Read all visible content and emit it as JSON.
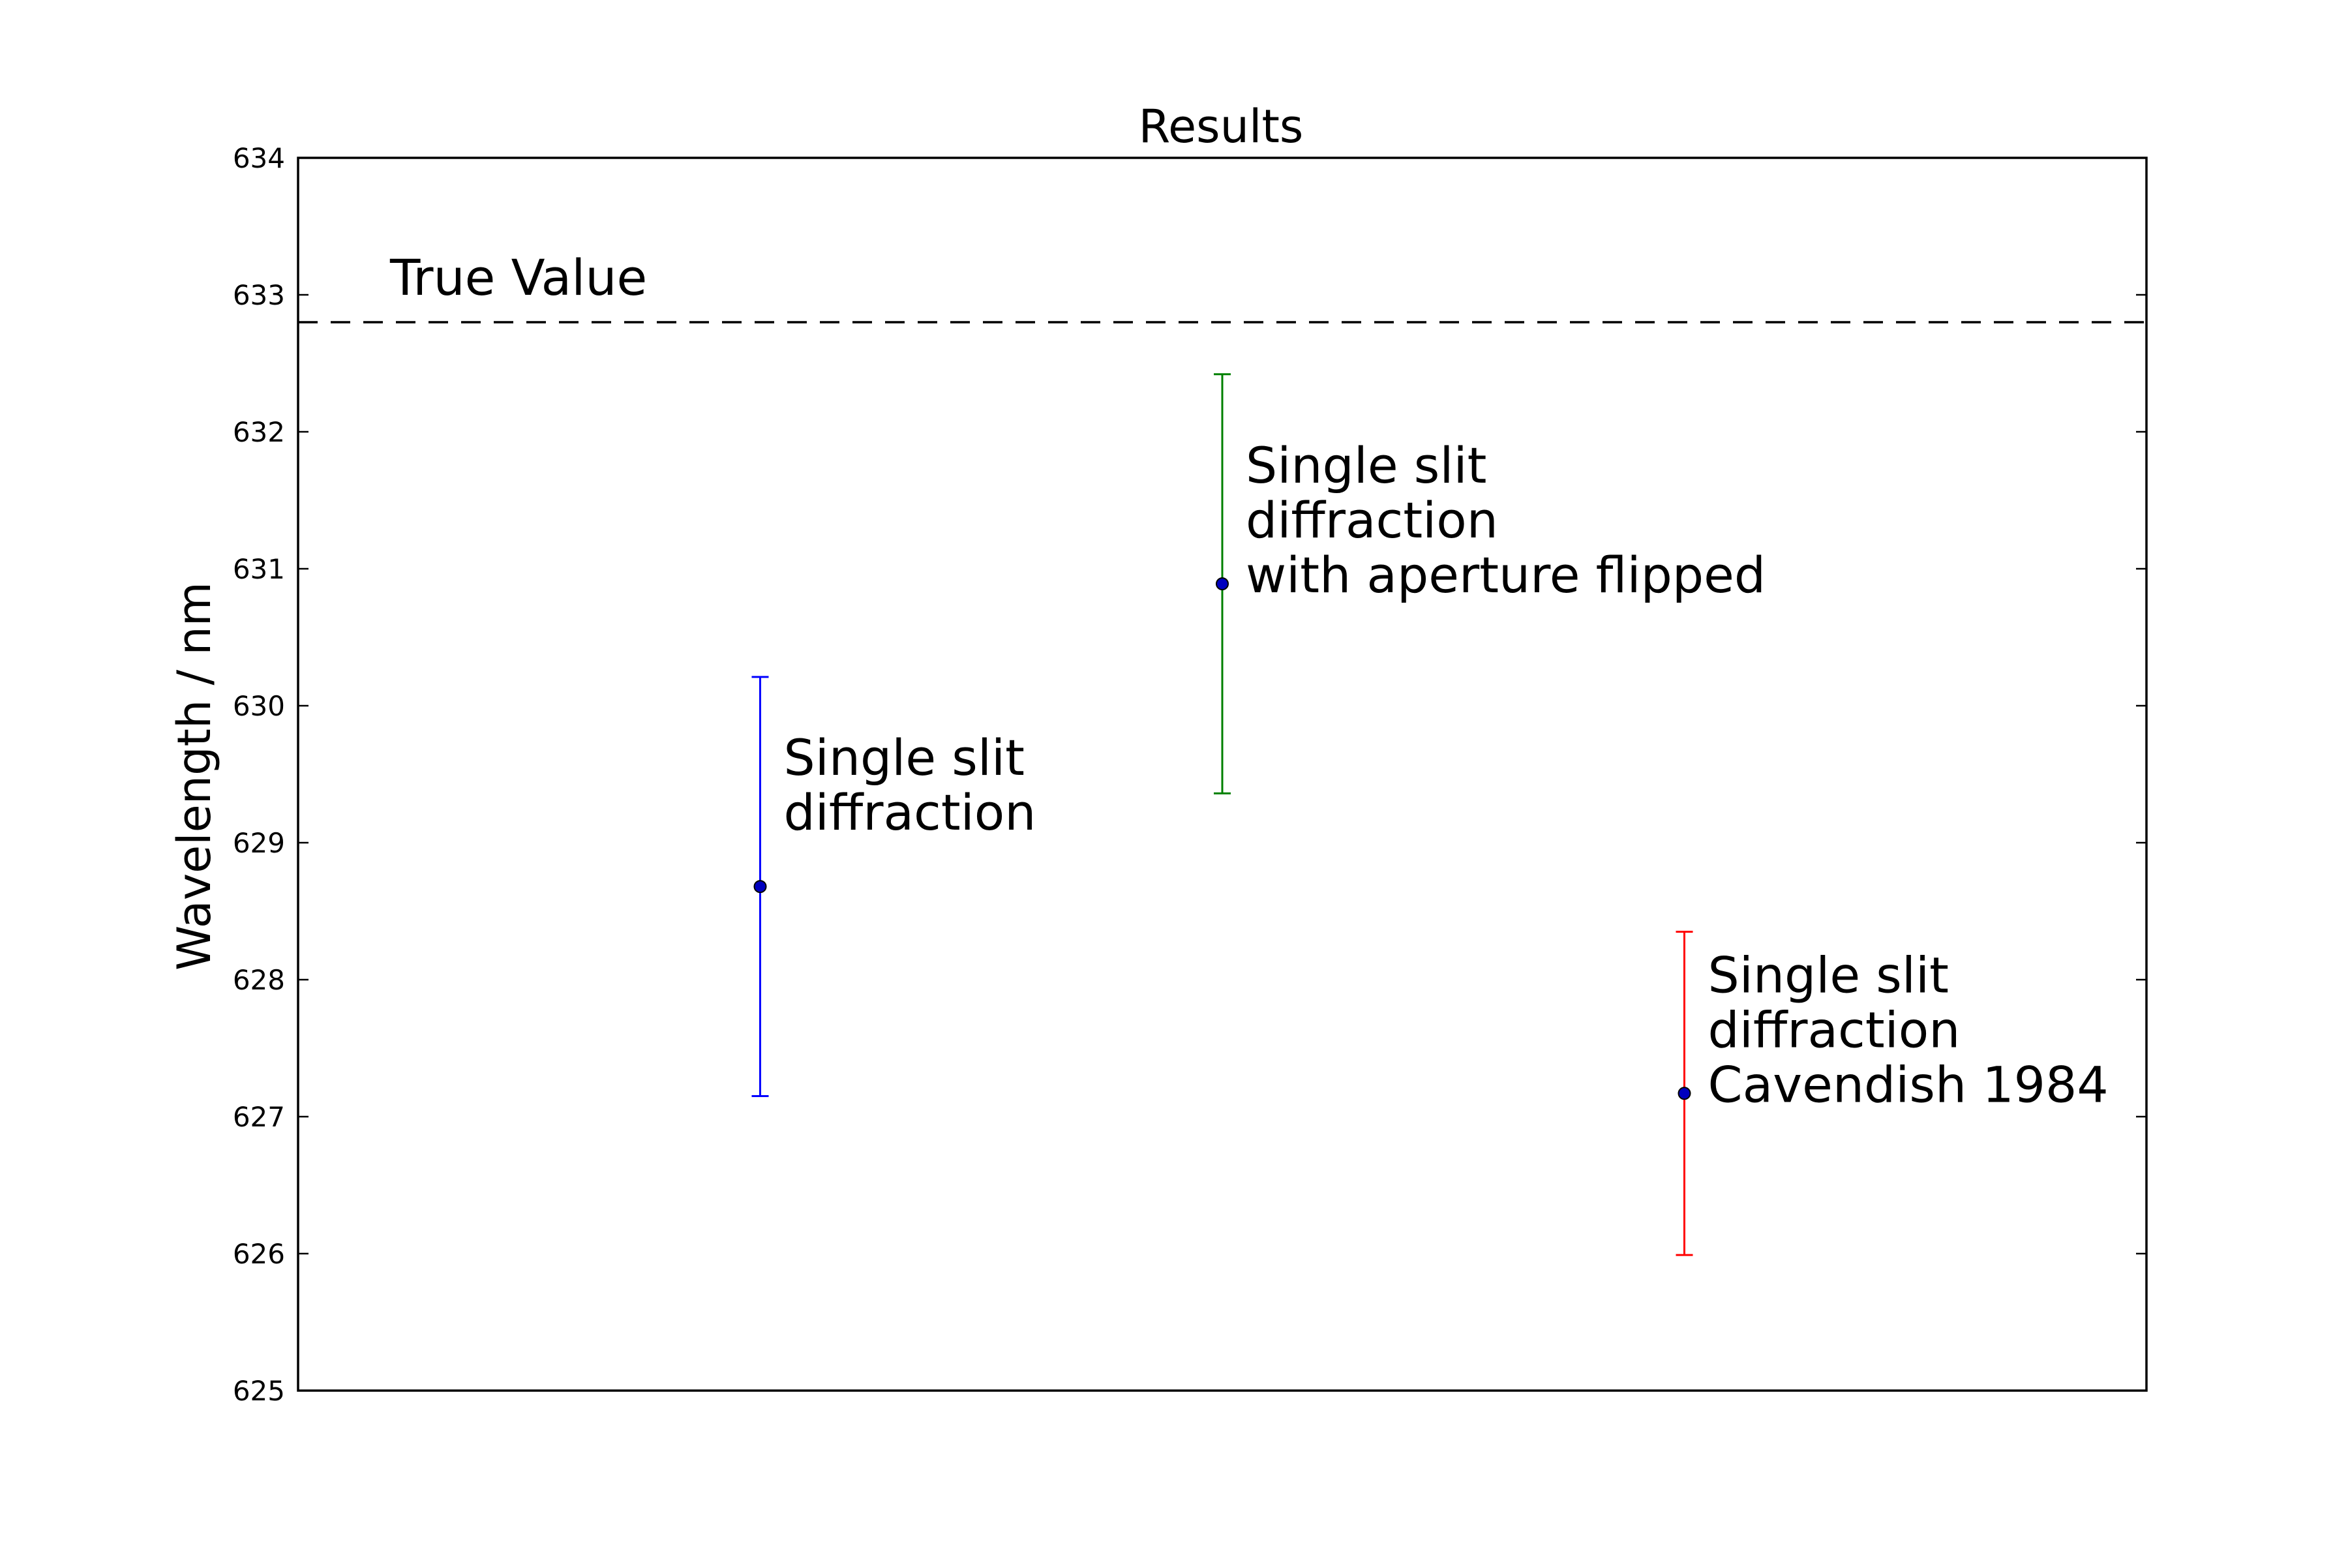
{
  "chart_data": {
    "type": "scatter",
    "title": "Results",
    "xlabel": "",
    "ylabel": "Wavelength / nm",
    "ylim": [
      625,
      634
    ],
    "xlim": [
      0,
      4
    ],
    "y_ticks": [
      "625",
      "626",
      "627",
      "628",
      "629",
      "630",
      "631",
      "632",
      "633",
      "634"
    ],
    "grid": false,
    "reference_line": {
      "label": "True Value",
      "value": 632.8,
      "style": "dashed",
      "color": "#000000"
    },
    "series": [
      {
        "name": "Single slit diffraction",
        "label_lines": [
          "Single slit",
          "diffraction"
        ],
        "x": 1,
        "value": 628.68,
        "error": 1.53,
        "color": "#0000ff"
      },
      {
        "name": "Single slit diffraction with aperture flipped",
        "label_lines": [
          "Single slit",
          "diffraction",
          "with aperture flipped"
        ],
        "x": 2,
        "value": 630.89,
        "error": 1.53,
        "color": "#008000"
      },
      {
        "name": "Single slit diffraction Cavendish 1984",
        "label_lines": [
          "Single slit",
          "diffraction",
          "Cavendish 1984"
        ],
        "x": 3,
        "value": 627.17,
        "error": 1.18,
        "color": "#ff0000"
      }
    ],
    "marker_fill": "#0000bf"
  }
}
